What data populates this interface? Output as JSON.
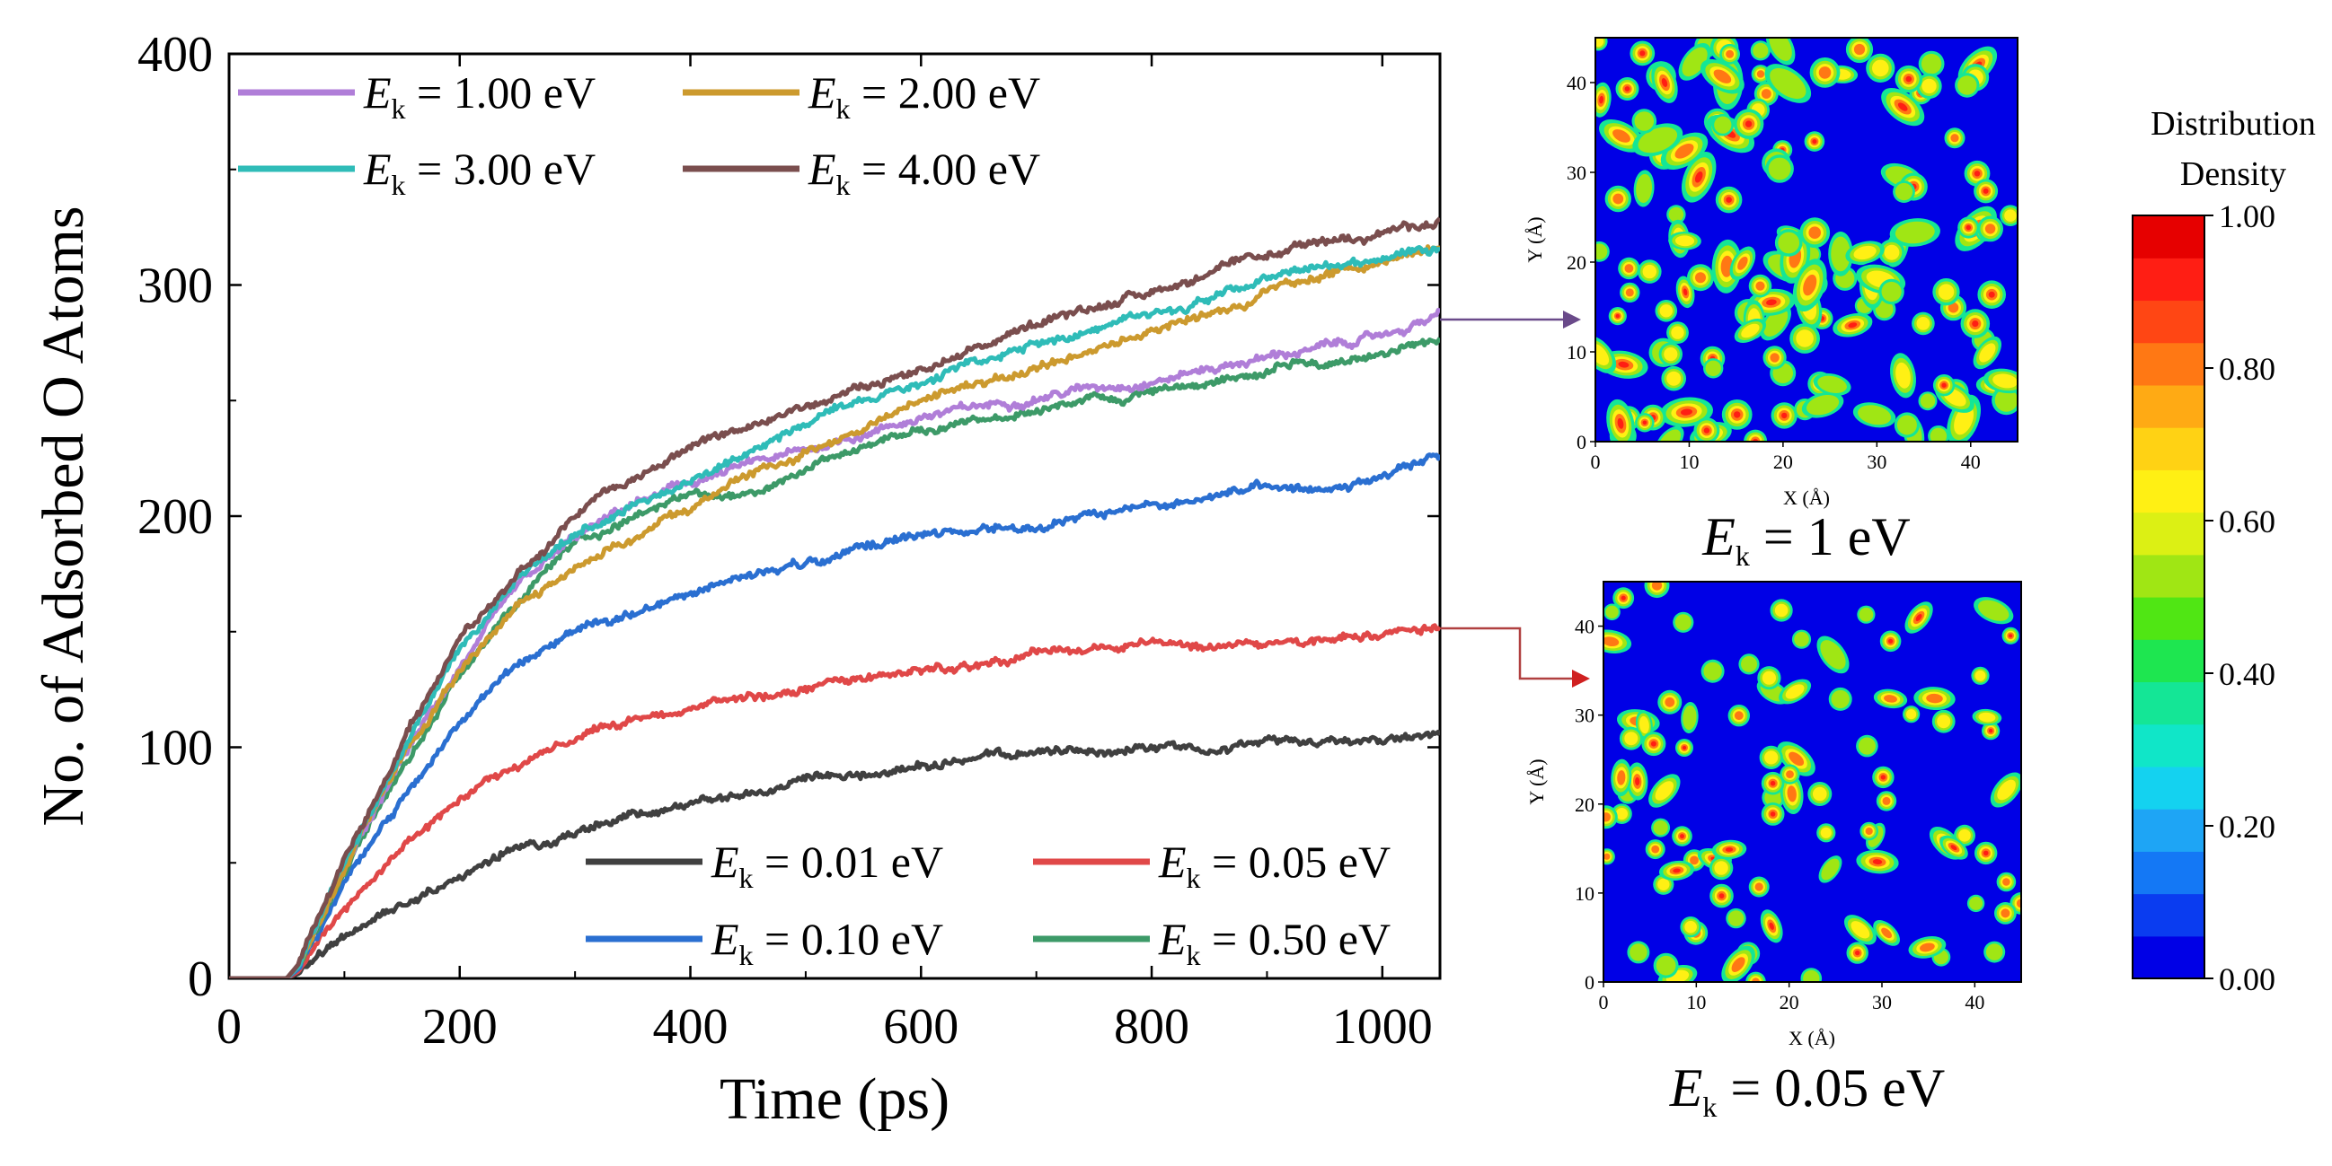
{
  "chart_data": [
    {
      "type": "line",
      "title": "",
      "xlabel": "Time (ps)",
      "ylabel": "No. of Adsorbed O Atoms",
      "xlim": [
        0,
        1050
      ],
      "ylim": [
        0,
        400
      ],
      "xticks": [
        0,
        200,
        400,
        600,
        800,
        1000
      ],
      "yticks": [
        0,
        100,
        200,
        300,
        400
      ],
      "x": [
        0,
        50,
        60,
        100,
        150,
        200,
        250,
        300,
        350,
        400,
        450,
        500,
        550,
        600,
        650,
        700,
        750,
        800,
        850,
        900,
        950,
        1000,
        1050
      ],
      "legend_placement": [
        "top-left",
        "bottom-right"
      ],
      "series": [
        {
          "name_prefix": "E",
          "name_sub": "k",
          "name_suffix": " = 0.01 eV",
          "color": "#404040",
          "legend_group": "bottom",
          "values": [
            0,
            0,
            2,
            18,
            33,
            45,
            55,
            63,
            70,
            75,
            80,
            84,
            87,
            92,
            95,
            97,
            99,
            100,
            101,
            102,
            103,
            104,
            105
          ]
        },
        {
          "name_prefix": "E",
          "name_sub": "k",
          "name_suffix": " = 0.05 eV",
          "color": "#e04848",
          "legend_group": "bottom",
          "values": [
            0,
            0,
            3,
            30,
            56,
            78,
            92,
            104,
            110,
            116,
            121,
            126,
            130,
            134,
            137,
            140,
            142,
            144,
            145,
            146,
            148,
            149,
            151
          ]
        },
        {
          "name_prefix": "E",
          "name_sub": "k",
          "name_suffix": " = 0.10 eV",
          "color": "#2a6fd1",
          "legend_group": "bottom",
          "values": [
            0,
            0,
            4,
            42,
            78,
            110,
            135,
            150,
            157,
            165,
            174,
            180,
            186,
            192,
            194,
            196,
            199,
            204,
            208,
            212,
            214,
            217,
            226
          ]
        },
        {
          "name_prefix": "E",
          "name_sub": "k",
          "name_suffix": " = 0.50 eV",
          "color": "#3d9a68",
          "legend_group": "bottom",
          "values": [
            0,
            0,
            5,
            47,
            93,
            132,
            164,
            188,
            200,
            208,
            212,
            220,
            230,
            238,
            242,
            246,
            250,
            254,
            258,
            262,
            266,
            270,
            275
          ]
        },
        {
          "name_prefix": "E",
          "name_sub": "k",
          "name_suffix": " = 1.00 eV",
          "color": "#b07ed8",
          "legend_group": "top",
          "values": [
            0,
            0,
            5,
            48,
            95,
            135,
            168,
            190,
            205,
            214,
            222,
            228,
            236,
            243,
            247,
            252,
            256,
            259,
            264,
            269,
            273,
            278,
            287
          ]
        },
        {
          "name_prefix": "E",
          "name_sub": "k",
          "name_suffix": " = 2.00 eV",
          "color": "#cc9a2e",
          "legend_group": "top",
          "values": [
            0,
            0,
            5,
            49,
            96,
            134,
            162,
            178,
            190,
            204,
            216,
            228,
            238,
            250,
            258,
            264,
            272,
            280,
            288,
            297,
            304,
            310,
            317
          ]
        },
        {
          "name_prefix": "E",
          "name_sub": "k",
          "name_suffix": " = 3.00 eV",
          "color": "#2fbcb8",
          "legend_group": "top",
          "values": [
            0,
            0,
            5,
            50,
            98,
            140,
            172,
            193,
            204,
            214,
            228,
            240,
            250,
            258,
            266,
            274,
            282,
            288,
            295,
            302,
            308,
            312,
            318
          ]
        },
        {
          "name_prefix": "E",
          "name_sub": "k",
          "name_suffix": " = 4.00 eV",
          "color": "#7a4e4e",
          "legend_group": "top",
          "values": [
            0,
            0,
            6,
            52,
            102,
            144,
            176,
            200,
            216,
            228,
            238,
            248,
            256,
            264,
            274,
            282,
            290,
            298,
            305,
            312,
            318,
            324,
            327
          ]
        }
      ]
    },
    {
      "type": "heatmap",
      "caption_prefix": "E",
      "caption_sub": "k",
      "caption_suffix": " = 1 eV",
      "xlabel": "X (Å)",
      "ylabel": "Y (Å)",
      "xlim": [
        0,
        45
      ],
      "ylim": [
        0,
        45
      ],
      "xticks": [
        0,
        10,
        20,
        30,
        40
      ],
      "yticks": [
        0,
        10,
        20,
        30,
        40
      ],
      "points_to_series": "E_k = 1.00 eV",
      "arrow_color": "#6a4a8a"
    },
    {
      "type": "heatmap",
      "caption_prefix": "E",
      "caption_sub": "k",
      "caption_suffix": " = 0.05 eV",
      "xlabel": "X (Å)",
      "ylabel": "Y (Å)",
      "xlim": [
        0,
        45
      ],
      "ylim": [
        0,
        45
      ],
      "xticks": [
        0,
        10,
        20,
        30,
        40
      ],
      "yticks": [
        0,
        10,
        20,
        30,
        40
      ],
      "points_to_series": "E_k = 0.05 eV",
      "arrow_color": "#c03030"
    }
  ],
  "colorbar": {
    "title_line1": "Distribution",
    "title_line2": "Density",
    "range": [
      0,
      1
    ],
    "ticks": [
      "0.00",
      "0.20",
      "0.40",
      "0.60",
      "0.80",
      "1.00"
    ],
    "tick_values": [
      0,
      0.2,
      0.4,
      0.6,
      0.8,
      1.0
    ],
    "colors": [
      "#0000e6",
      "#0a3cf0",
      "#1478f5",
      "#1ea5f5",
      "#14d2f0",
      "#10e6c8",
      "#14e696",
      "#1ee650",
      "#50e614",
      "#a0e614",
      "#dcf014",
      "#fff014",
      "#ffd214",
      "#ffaa14",
      "#ff7814",
      "#ff4614",
      "#ff1e14",
      "#e60000"
    ]
  }
}
